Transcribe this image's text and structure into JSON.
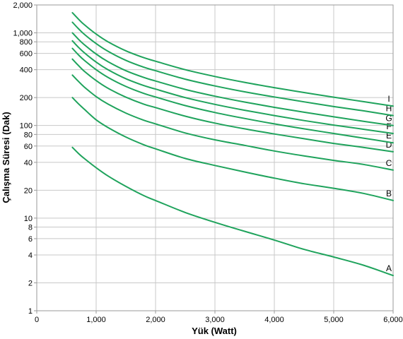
{
  "chart_data": {
    "type": "line",
    "title": "",
    "xlabel": "Yük (Watt)",
    "ylabel": "Çalışma Süresi (Dak)",
    "xscale": "linear",
    "yscale": "log",
    "xlim": [
      0,
      6000
    ],
    "ylim": [
      1,
      2000
    ],
    "grid": true,
    "legend": "none",
    "line_color": "#1fa35c",
    "x_tick_labels": [
      {
        "value": 0,
        "label": "0"
      },
      {
        "value": 1000,
        "label": "1,000"
      },
      {
        "value": 2000,
        "label": "2,000"
      },
      {
        "value": 3000,
        "label": "3,000"
      },
      {
        "value": 4000,
        "label": "4,000"
      },
      {
        "value": 5000,
        "label": "5,000"
      },
      {
        "value": 6000,
        "label": "6,000"
      }
    ],
    "y_tick_labels": [
      {
        "value": 1,
        "label": "1"
      },
      {
        "value": 2,
        "label": "2"
      },
      {
        "value": 4,
        "label": "4"
      },
      {
        "value": 6,
        "label": "6"
      },
      {
        "value": 8,
        "label": "8"
      },
      {
        "value": 10,
        "label": "10"
      },
      {
        "value": 20,
        "label": "20"
      },
      {
        "value": 40,
        "label": "40"
      },
      {
        "value": 60,
        "label": "60"
      },
      {
        "value": 80,
        "label": "80"
      },
      {
        "value": 100,
        "label": "100"
      },
      {
        "value": 200,
        "label": "200"
      },
      {
        "value": 400,
        "label": "400"
      },
      {
        "value": 600,
        "label": "600"
      },
      {
        "value": 800,
        "label": "800"
      },
      {
        "value": 1000,
        "label": "1,000"
      },
      {
        "value": 2000,
        "label": "2,000"
      }
    ],
    "x": [
      600,
      700,
      800,
      1000,
      1200,
      1500,
      1800,
      2000,
      2500,
      3000,
      3500,
      4000,
      4500,
      5000,
      5500,
      6000
    ],
    "series": [
      {
        "name": "A",
        "values": [
          58,
          50,
          44,
          35,
          28.5,
          22,
          17.5,
          15.5,
          11.5,
          9,
          7.2,
          5.8,
          4.6,
          3.8,
          3.1,
          2.4
        ]
      },
      {
        "name": "B",
        "values": [
          200,
          172,
          150,
          115,
          95,
          75,
          62,
          56,
          44,
          37,
          31.5,
          27,
          23.5,
          21,
          18.5,
          15.5
        ]
      },
      {
        "name": "C",
        "values": [
          350,
          300,
          260,
          205,
          170,
          136,
          114,
          104,
          83,
          70,
          61,
          53,
          47,
          42,
          38,
          33
        ]
      },
      {
        "name": "D",
        "values": [
          520,
          445,
          385,
          305,
          252,
          202,
          170,
          156,
          126,
          106,
          92,
          81,
          72,
          64,
          58,
          52
        ]
      },
      {
        "name": "E",
        "values": [
          680,
          580,
          505,
          400,
          330,
          264,
          222,
          203,
          164,
          138,
          119,
          104,
          92,
          82,
          73,
          65
        ]
      },
      {
        "name": "F",
        "values": [
          820,
          700,
          610,
          483,
          400,
          320,
          270,
          247,
          200,
          169,
          146,
          128,
          113,
          101,
          91,
          82
        ]
      },
      {
        "name": "G",
        "values": [
          1000,
          855,
          745,
          590,
          488,
          390,
          330,
          302,
          245,
          207,
          179,
          157,
          139,
          124,
          111,
          100
        ]
      },
      {
        "name": "H",
        "values": [
          1300,
          1110,
          965,
          765,
          632,
          505,
          426,
          390,
          316,
          267,
          231,
          203,
          180,
          160,
          144,
          128
        ]
      },
      {
        "name": "I",
        "values": [
          1650,
          1410,
          1225,
          970,
          800,
          640,
          540,
          494,
          400,
          338,
          292,
          256,
          227,
          202,
          181,
          162
        ]
      }
    ]
  }
}
